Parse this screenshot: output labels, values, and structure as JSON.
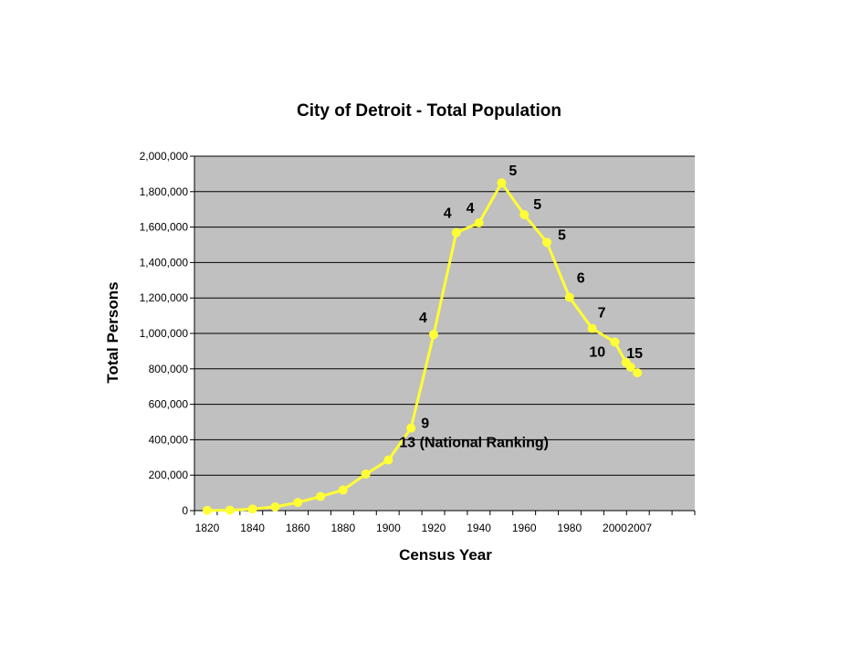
{
  "chart_data": {
    "type": "line",
    "title": "City of Detroit - Total Population",
    "xlabel": "Census Year",
    "ylabel": "Total Persons",
    "ylim": [
      0,
      2000000
    ],
    "y_ticks": [
      0,
      200000,
      400000,
      600000,
      800000,
      1000000,
      1200000,
      1400000,
      1600000,
      1800000,
      2000000
    ],
    "y_tick_labels": [
      "0",
      "200,000",
      "400,000",
      "600,000",
      "800,000",
      "1,000,000",
      "1,200,000",
      "1,400,000",
      "1,600,000",
      "1,800,000",
      "2,000,000"
    ],
    "x_tick_labels": [
      "1820",
      "1840",
      "1860",
      "1880",
      "1900",
      "1920",
      "1940",
      "1960",
      "1980",
      "2000",
      "2007"
    ],
    "grid": "horizontal",
    "series": [
      {
        "x": [
          "1820",
          "1830",
          "1840",
          "1850",
          "1860",
          "1870",
          "1880",
          "1890",
          "1900",
          "1910",
          "1920",
          "1930",
          "1940",
          "1950",
          "1960",
          "1970",
          "1980",
          "1990",
          "2000",
          "2005",
          "2007",
          "2010"
        ],
        "values": [
          1422,
          2222,
          9102,
          21019,
          45619,
          79577,
          116340,
          205876,
          285704,
          465766,
          993678,
          1568662,
          1623452,
          1849568,
          1670144,
          1514063,
          1203339,
          1027974,
          951270,
          836000,
          810000,
          778000
        ]
      }
    ],
    "annotations": [
      {
        "text": "13 (National Ranking)",
        "x": "1900",
        "y": 285704
      },
      {
        "text": "9",
        "x": "1910",
        "y": 465766
      },
      {
        "text": "4",
        "x": "1920",
        "y": 993678
      },
      {
        "text": "4",
        "x": "1930",
        "y": 1568662
      },
      {
        "text": "4",
        "x": "1940",
        "y": 1623452
      },
      {
        "text": "5",
        "x": "1950",
        "y": 1849568
      },
      {
        "text": "5",
        "x": "1960",
        "y": 1670144
      },
      {
        "text": "5",
        "x": "1970",
        "y": 1514063
      },
      {
        "text": "6",
        "x": "1980",
        "y": 1203339
      },
      {
        "text": "7",
        "x": "1990",
        "y": 1027974
      },
      {
        "text": "10",
        "x": "2000",
        "y": 951270
      },
      {
        "text": "15",
        "x": "2010",
        "y": 778000
      }
    ],
    "colors": {
      "plot_bg": "#c0c0c0",
      "line": "#ffff33",
      "grid": "#000000"
    }
  }
}
